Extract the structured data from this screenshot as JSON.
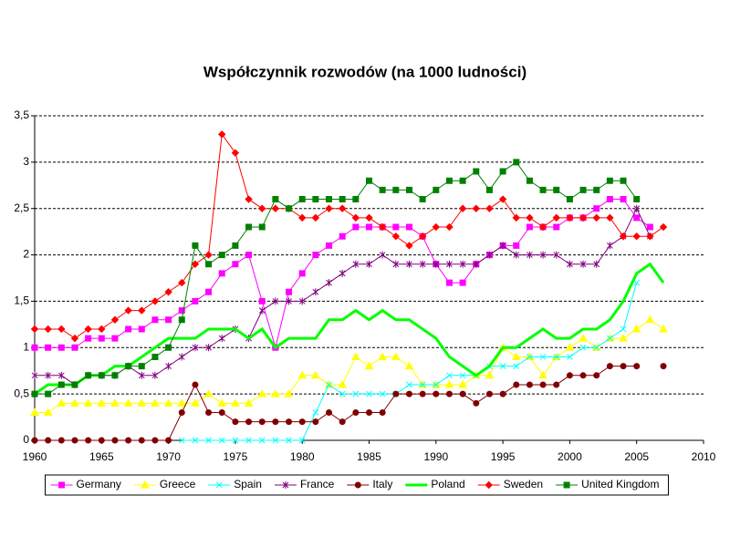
{
  "chart_data": {
    "type": "line",
    "title": "Współczynnik rozwodów (na 1000 ludności)",
    "x": [
      1960,
      1961,
      1962,
      1963,
      1964,
      1965,
      1966,
      1967,
      1968,
      1969,
      1970,
      1971,
      1972,
      1973,
      1974,
      1975,
      1976,
      1977,
      1978,
      1979,
      1980,
      1981,
      1982,
      1983,
      1984,
      1985,
      1986,
      1987,
      1988,
      1989,
      1990,
      1991,
      1992,
      1993,
      1994,
      1995,
      1996,
      1997,
      1998,
      1999,
      2000,
      2001,
      2002,
      2003,
      2004,
      2005,
      2006,
      2007
    ],
    "xlim": [
      1960,
      2010
    ],
    "xticks": [
      1960,
      1965,
      1970,
      1975,
      1980,
      1985,
      1990,
      1995,
      2000,
      2005,
      2010
    ],
    "ylim": [
      0,
      3.5
    ],
    "yticks": [
      0,
      {
        "value": 0.5,
        "label": "0,5"
      },
      1,
      {
        "value": 1.5,
        "label": "1,5"
      },
      2,
      {
        "value": 2.5,
        "label": "2,5"
      },
      3,
      {
        "value": 3.5,
        "label": "3,5"
      }
    ],
    "grid": true,
    "legend": "bottom",
    "series": [
      {
        "name": "Germany",
        "color": "#ff00ff",
        "marker": "square",
        "values": [
          1.0,
          1.0,
          1.0,
          1.0,
          1.1,
          1.1,
          1.1,
          1.2,
          1.2,
          1.3,
          1.3,
          1.4,
          1.5,
          1.6,
          1.8,
          1.9,
          2.0,
          1.5,
          1.0,
          1.6,
          1.8,
          2.0,
          2.1,
          2.2,
          2.3,
          2.3,
          2.3,
          2.3,
          2.3,
          2.2,
          1.9,
          1.7,
          1.7,
          1.9,
          2.0,
          2.1,
          2.1,
          2.3,
          2.3,
          2.3,
          2.4,
          2.4,
          2.5,
          2.6,
          2.6,
          2.4,
          2.3,
          null
        ]
      },
      {
        "name": "Greece",
        "color": "#ffff00",
        "marker": "triangle",
        "values": [
          0.3,
          0.3,
          0.4,
          0.4,
          0.4,
          0.4,
          0.4,
          0.4,
          0.4,
          0.4,
          0.4,
          0.4,
          0.4,
          0.5,
          0.4,
          0.4,
          0.4,
          0.5,
          0.5,
          0.5,
          0.7,
          0.7,
          0.6,
          0.6,
          0.9,
          0.8,
          0.9,
          0.9,
          0.8,
          0.6,
          0.6,
          0.6,
          0.6,
          0.7,
          0.7,
          1.0,
          0.9,
          0.9,
          0.7,
          0.9,
          1.0,
          1.1,
          1.0,
          1.1,
          1.1,
          1.2,
          1.3,
          1.2
        ]
      },
      {
        "name": "Spain",
        "color": "#00ffff",
        "marker": "x",
        "values": [
          null,
          null,
          null,
          null,
          null,
          null,
          null,
          null,
          null,
          null,
          null,
          0,
          0,
          0,
          0,
          0,
          0,
          0,
          0,
          0,
          0,
          0.3,
          0.6,
          0.5,
          0.5,
          0.5,
          0.5,
          0.5,
          0.6,
          0.6,
          0.6,
          0.7,
          0.7,
          0.7,
          0.8,
          0.8,
          0.8,
          0.9,
          0.9,
          0.9,
          0.9,
          1.0,
          1.0,
          1.1,
          1.2,
          1.7,
          null,
          null
        ]
      },
      {
        "name": "France",
        "color": "#800080",
        "marker": "asterisk",
        "values": [
          0.7,
          0.7,
          0.7,
          0.6,
          0.7,
          0.7,
          0.7,
          0.8,
          0.7,
          0.7,
          0.8,
          0.9,
          1.0,
          1.0,
          1.1,
          1.2,
          1.1,
          1.4,
          1.5,
          1.5,
          1.5,
          1.6,
          1.7,
          1.8,
          1.9,
          1.9,
          2.0,
          1.9,
          1.9,
          1.9,
          1.9,
          1.9,
          1.9,
          1.9,
          2.0,
          2.1,
          2.0,
          2.0,
          2.0,
          2.0,
          1.9,
          1.9,
          1.9,
          2.1,
          2.2,
          2.5,
          2.2,
          null
        ]
      },
      {
        "name": "Italy",
        "color": "#800000",
        "marker": "circle",
        "values": [
          0,
          0,
          0,
          0,
          0,
          0,
          0,
          0,
          0,
          0,
          0,
          0.3,
          0.6,
          0.3,
          0.3,
          0.2,
          0.2,
          0.2,
          0.2,
          0.2,
          0.2,
          0.2,
          0.3,
          0.2,
          0.3,
          0.3,
          0.3,
          0.5,
          0.5,
          0.5,
          0.5,
          0.5,
          0.5,
          0.4,
          0.5,
          0.5,
          0.6,
          0.6,
          0.6,
          0.6,
          0.7,
          0.7,
          0.7,
          0.8,
          0.8,
          0.8,
          null,
          0.8
        ]
      },
      {
        "name": "Poland",
        "color": "#00ff00",
        "marker": "none",
        "values": [
          0.5,
          0.6,
          0.6,
          0.6,
          0.7,
          0.7,
          0.8,
          0.8,
          0.9,
          1.0,
          1.1,
          1.1,
          1.1,
          1.2,
          1.2,
          1.2,
          1.1,
          1.2,
          1.0,
          1.1,
          1.1,
          1.1,
          1.3,
          1.3,
          1.4,
          1.3,
          1.4,
          1.3,
          1.3,
          1.2,
          1.1,
          0.9,
          0.8,
          0.7,
          0.8,
          1.0,
          1.0,
          1.1,
          1.2,
          1.1,
          1.1,
          1.2,
          1.2,
          1.3,
          1.5,
          1.8,
          1.9,
          1.7
        ]
      },
      {
        "name": "Sweden",
        "color": "#ff0000",
        "marker": "diamond",
        "values": [
          1.2,
          1.2,
          1.2,
          1.1,
          1.2,
          1.2,
          1.3,
          1.4,
          1.4,
          1.5,
          1.6,
          1.7,
          1.9,
          2.0,
          3.3,
          3.1,
          2.6,
          2.5,
          2.5,
          2.5,
          2.4,
          2.4,
          2.5,
          2.5,
          2.4,
          2.4,
          2.3,
          2.2,
          2.1,
          2.2,
          2.3,
          2.3,
          2.5,
          2.5,
          2.5,
          2.6,
          2.4,
          2.4,
          2.3,
          2.4,
          2.4,
          2.4,
          2.4,
          2.4,
          2.2,
          2.2,
          2.2,
          2.3
        ]
      },
      {
        "name": "United Kingdom",
        "color": "#008000",
        "marker": "square",
        "values": [
          0.5,
          0.5,
          0.6,
          0.6,
          0.7,
          0.7,
          0.7,
          0.8,
          0.8,
          0.9,
          1.0,
          1.3,
          2.1,
          1.9,
          2.0,
          2.1,
          2.3,
          2.3,
          2.6,
          2.5,
          2.6,
          2.6,
          2.6,
          2.6,
          2.6,
          2.8,
          2.7,
          2.7,
          2.7,
          2.6,
          2.7,
          2.8,
          2.8,
          2.9,
          2.7,
          2.9,
          3.0,
          2.8,
          2.7,
          2.7,
          2.6,
          2.7,
          2.7,
          2.8,
          2.8,
          2.6,
          null,
          null
        ]
      }
    ]
  }
}
